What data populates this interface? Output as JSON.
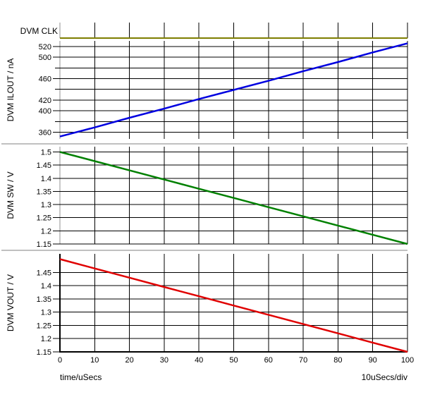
{
  "app": {
    "name": "waveform-plot-window"
  },
  "colors": {
    "background": "#FFFFFF",
    "grid": "#000000",
    "axis_inactive": "#C8C8C8",
    "axis_active": "#000000",
    "separator": "#C0C0C0"
  },
  "x_axis": {
    "range": [
      0,
      100
    ],
    "ticks": [
      0,
      10,
      20,
      30,
      40,
      50,
      60,
      70,
      80,
      90,
      100
    ],
    "tick_labels": [
      "0",
      "10",
      "20",
      "30",
      "40",
      "50",
      "60",
      "70",
      "80",
      "90",
      "100"
    ]
  },
  "footer": {
    "x_axis_label": "time/uSecs",
    "scale_label": "10uSecs/div"
  },
  "chart_data": [
    {
      "type": "line",
      "title": "DVM CLK",
      "color": "#7E7E00",
      "x": [
        0,
        100
      ],
      "values": [
        0,
        0
      ],
      "y_range": [
        0,
        1
      ],
      "y_gridlines": []
    },
    {
      "type": "line",
      "title": "DVM ILOUT / nA",
      "color": "#0000E0",
      "x": [
        0,
        10,
        20,
        30,
        40,
        50,
        60,
        70,
        80,
        90,
        100
      ],
      "values": [
        352,
        369,
        387,
        404,
        422,
        439,
        456,
        474,
        491,
        509,
        526
      ],
      "y_range": [
        347.5,
        530.5
      ],
      "y_gridlines": [
        {
          "v": 360,
          "label": "360"
        },
        {
          "v": 380,
          "label": ""
        },
        {
          "v": 400,
          "label": "400"
        },
        {
          "v": 420,
          "label": "420"
        },
        {
          "v": 440,
          "label": ""
        },
        {
          "v": 460,
          "label": "460"
        },
        {
          "v": 480,
          "label": ""
        },
        {
          "v": 500,
          "label": "500"
        },
        {
          "v": 520,
          "label": "520"
        }
      ]
    },
    {
      "type": "line",
      "title": "DVM SW / V",
      "color": "#008000",
      "x": [
        0,
        10,
        20,
        30,
        40,
        50,
        60,
        70,
        80,
        90,
        100
      ],
      "values": [
        1.5,
        1.465,
        1.43,
        1.395,
        1.36,
        1.325,
        1.29,
        1.255,
        1.22,
        1.185,
        1.15
      ],
      "y_range": [
        1.15,
        1.52
      ],
      "y_gridlines": [
        {
          "v": 1.15,
          "label": "1.15"
        },
        {
          "v": 1.2,
          "label": "1.2"
        },
        {
          "v": 1.25,
          "label": "1.25"
        },
        {
          "v": 1.3,
          "label": "1.3"
        },
        {
          "v": 1.35,
          "label": "1.35"
        },
        {
          "v": 1.4,
          "label": "1.4"
        },
        {
          "v": 1.45,
          "label": "1.45"
        },
        {
          "v": 1.5,
          "label": "1.5"
        }
      ]
    },
    {
      "type": "line",
      "title": "DVM VOUT / V",
      "color": "#E00000",
      "x": [
        0,
        10,
        20,
        30,
        40,
        50,
        60,
        70,
        80,
        90,
        100
      ],
      "values": [
        1.5,
        1.465,
        1.43,
        1.395,
        1.36,
        1.325,
        1.29,
        1.255,
        1.22,
        1.185,
        1.15
      ],
      "y_range": [
        1.15,
        1.52
      ],
      "y_gridlines": [
        {
          "v": 1.15,
          "label": "1.15"
        },
        {
          "v": 1.2,
          "label": "1.2"
        },
        {
          "v": 1.25,
          "label": "1.25"
        },
        {
          "v": 1.3,
          "label": "1.3"
        },
        {
          "v": 1.35,
          "label": "1.35"
        },
        {
          "v": 1.4,
          "label": "1.4"
        },
        {
          "v": 1.45,
          "label": "1.45"
        }
      ]
    }
  ]
}
